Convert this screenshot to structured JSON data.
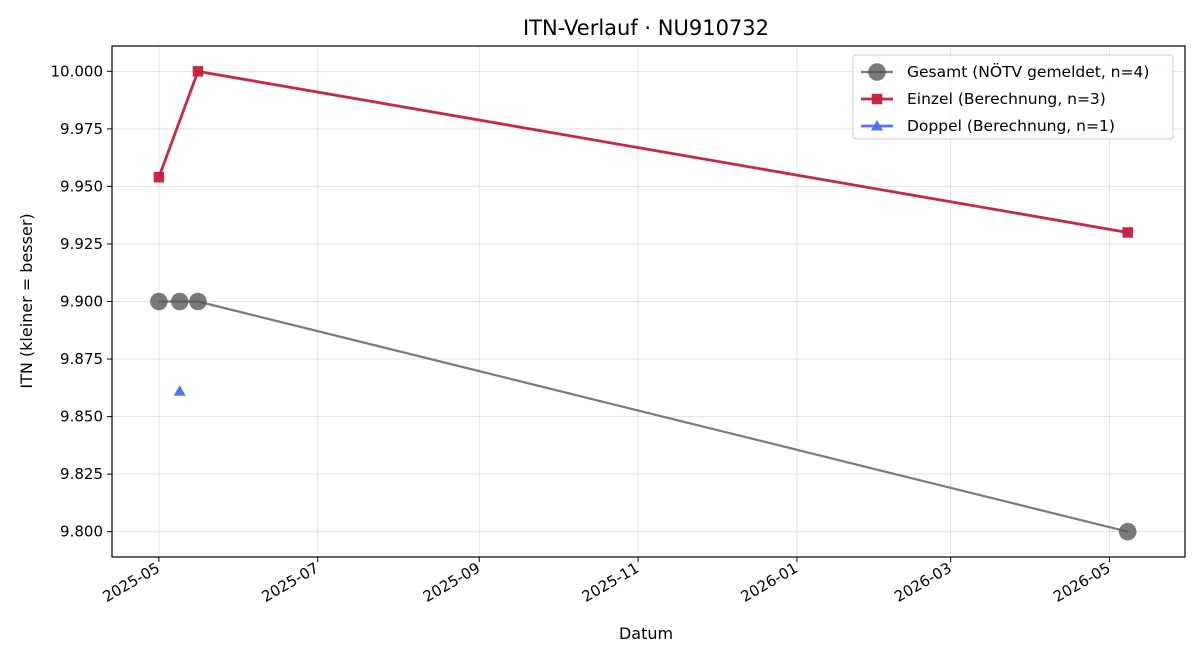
{
  "chart_data": {
    "type": "line",
    "title": "ITN-Verlauf · NU910732",
    "xlabel": "Datum",
    "ylabel": "ITN  (kleiner = besser)",
    "x_type": "date",
    "xlim": [
      "2025-04-13",
      "2026-05-30"
    ],
    "ylim": [
      9.789,
      10.011
    ],
    "x_ticks": [
      "2025-05",
      "2025-07",
      "2025-09",
      "2025-11",
      "2026-01",
      "2026-03",
      "2026-05"
    ],
    "y_ticks": [
      "9.800",
      "9.825",
      "9.850",
      "9.875",
      "9.900",
      "9.925",
      "9.950",
      "9.975",
      "10.000"
    ],
    "grid": true,
    "legend_position": "top-right",
    "series": [
      {
        "name": "Gesamt (NÖTV gemeldet, n=4)",
        "color": "#555555",
        "marker": "circle",
        "points": [
          {
            "x": "2025-05-01",
            "y": 9.9
          },
          {
            "x": "2025-05-09",
            "y": 9.9
          },
          {
            "x": "2025-05-16",
            "y": 9.9
          },
          {
            "x": "2026-05-08",
            "y": 9.8
          }
        ]
      },
      {
        "name": "Einzel (Berechnung, n=3)",
        "color": "#c41e3a",
        "marker": "square",
        "points": [
          {
            "x": "2025-05-01",
            "y": 9.954
          },
          {
            "x": "2025-05-16",
            "y": 10.0
          },
          {
            "x": "2026-05-08",
            "y": 9.93
          }
        ]
      },
      {
        "name": "Doppel (Berechnung, n=1)",
        "color": "#4a6cf0",
        "marker": "triangle",
        "points": [
          {
            "x": "2025-05-09",
            "y": 9.861
          }
        ]
      }
    ]
  }
}
